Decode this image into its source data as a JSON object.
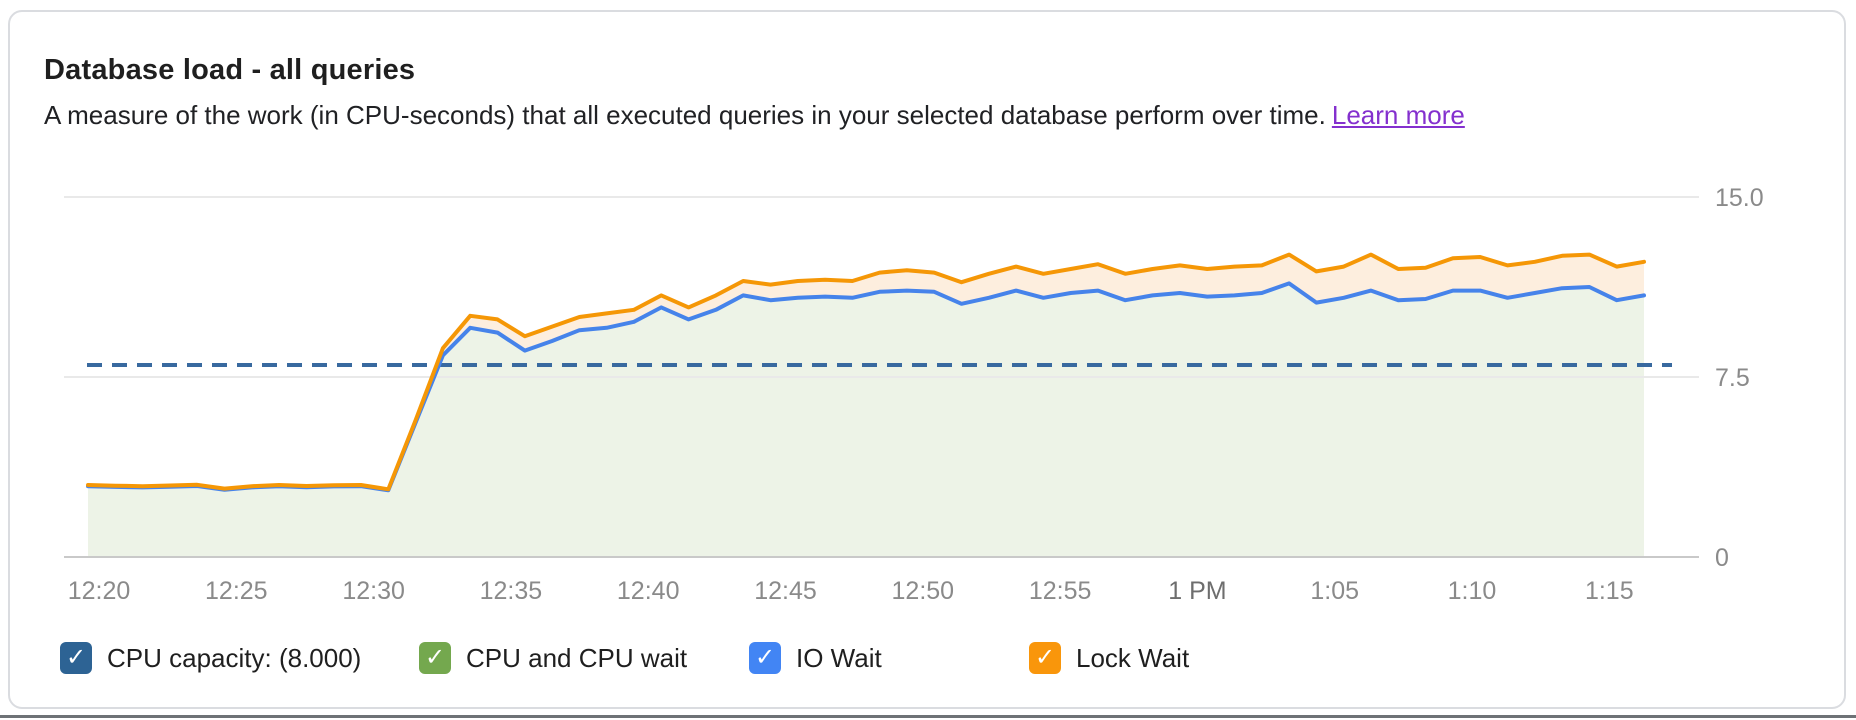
{
  "header": {
    "title": "Database load - all queries",
    "subtitle": "A measure of the work (in CPU-seconds) that all executed queries in your selected database perform over time.",
    "learn_more_label": "Learn more",
    "link_color": "#8430ce"
  },
  "chart_data": {
    "type": "area",
    "title": "Database load - all queries",
    "stacked_note": "green area extends up to the IO Wait (blue) line; peach band lies between blue and orange lines",
    "x": [
      "12:19",
      "12:20",
      "12:21",
      "12:22",
      "12:23",
      "12:24",
      "12:25",
      "12:26",
      "12:27",
      "12:28",
      "12:29",
      "12:30",
      "12:31",
      "12:32",
      "12:33",
      "12:34",
      "12:35",
      "12:36",
      "12:37",
      "12:38",
      "12:39",
      "12:40",
      "12:41",
      "12:42",
      "12:43",
      "12:44",
      "12:45",
      "12:46",
      "12:47",
      "12:48",
      "12:49",
      "12:50",
      "12:51",
      "12:52",
      "12:53",
      "12:54",
      "12:55",
      "12:56",
      "12:57",
      "12:58",
      "12:59",
      "1:00",
      "1:01",
      "1:02",
      "1:03",
      "1:04",
      "1:05",
      "1:06",
      "1:07",
      "1:08",
      "1:09",
      "1:10",
      "1:11",
      "1:12",
      "1:13",
      "1:14",
      "1:15",
      "1:16"
    ],
    "x_axis_ticks": [
      "12:20",
      "12:25",
      "12:30",
      "12:35",
      "12:40",
      "12:45",
      "12:50",
      "12:55",
      "1 PM",
      "1:05",
      "1:10",
      "1:15"
    ],
    "y_axis_ticks": [
      "15.0",
      "7.5",
      "0"
    ],
    "y_axis_values": [
      15,
      7.5,
      0
    ],
    "ylim": [
      0,
      15
    ],
    "grid": "horizontal",
    "legend_position": "bottom",
    "capacity": {
      "label": "CPU capacity: (8.000)",
      "value": 8.0,
      "style": "dashed",
      "color": "#38699f"
    },
    "green_area": {
      "legend": "CPU and CPU wait",
      "fill": "#edf3e7",
      "checkbox_color": "#74a84e"
    },
    "series": [
      {
        "name": "IO Wait",
        "color": "#4683ea",
        "fill_below": "#edf3e7",
        "values": [
          2.95,
          2.92,
          2.9,
          2.93,
          2.96,
          2.8,
          2.9,
          2.95,
          2.91,
          2.94,
          2.95,
          2.78,
          5.6,
          8.4,
          9.55,
          9.35,
          8.6,
          9.0,
          9.45,
          9.55,
          9.8,
          10.4,
          9.9,
          10.3,
          10.9,
          10.7,
          10.8,
          10.85,
          10.8,
          11.05,
          11.1,
          11.05,
          10.55,
          10.8,
          11.1,
          10.8,
          11.0,
          11.1,
          10.7,
          10.9,
          11.0,
          10.85,
          10.9,
          11.0,
          11.4,
          10.6,
          10.8,
          11.1,
          10.7,
          10.75,
          11.1,
          11.1,
          10.8,
          11.0,
          11.2,
          11.25,
          10.7,
          10.9
        ]
      },
      {
        "name": "Lock Wait",
        "color": "#f59706",
        "fill_to_previous": "#fdeede",
        "values": [
          3.0,
          2.97,
          2.95,
          2.98,
          3.01,
          2.85,
          2.95,
          3.0,
          2.96,
          2.99,
          3.0,
          2.82,
          5.7,
          8.7,
          10.05,
          9.9,
          9.2,
          9.6,
          10.0,
          10.15,
          10.3,
          10.9,
          10.4,
          10.9,
          11.5,
          11.35,
          11.5,
          11.55,
          11.5,
          11.85,
          11.95,
          11.85,
          11.45,
          11.8,
          12.1,
          11.8,
          12.0,
          12.2,
          11.8,
          12.0,
          12.15,
          12.0,
          12.1,
          12.15,
          12.6,
          11.9,
          12.1,
          12.6,
          12.0,
          12.05,
          12.45,
          12.5,
          12.15,
          12.3,
          12.55,
          12.6,
          12.1,
          12.3
        ]
      }
    ]
  },
  "legend": {
    "items": [
      {
        "label": "CPU capacity: (8.000)",
        "color": "#2d6394",
        "checked": true
      },
      {
        "label": "CPU and CPU wait",
        "color": "#74a84e",
        "checked": true
      },
      {
        "label": "IO Wait",
        "color": "#4285f4",
        "checked": true
      },
      {
        "label": "Lock Wait",
        "color": "#f9960b",
        "checked": true
      }
    ],
    "checkmark": "✓"
  }
}
